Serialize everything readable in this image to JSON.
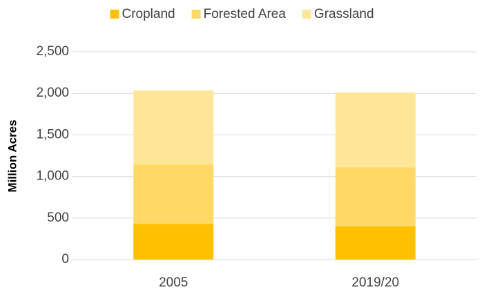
{
  "chart_data": {
    "type": "stacked_bar",
    "y_label": "Million Acres",
    "categories": [
      "2005",
      "2019/20"
    ],
    "series": [
      {
        "name": "Cropland",
        "color": "#ffc000",
        "values": [
          430,
          400
        ]
      },
      {
        "name": "Forested Area",
        "color": "#ffd966",
        "values": [
          715,
          710
        ]
      },
      {
        "name": "Grassland",
        "color": "#ffe699",
        "values": [
          890,
          900
        ]
      }
    ],
    "ylim": [
      0,
      2500
    ],
    "yticks": [
      0,
      500,
      {
        "value": 1000,
        "label": "1,000"
      },
      {
        "value": 1500,
        "label": "1,500"
      },
      {
        "value": 2000,
        "label": "2,000"
      },
      {
        "value": 2500,
        "label": "2,500"
      }
    ],
    "grid": true,
    "legend": "top"
  }
}
